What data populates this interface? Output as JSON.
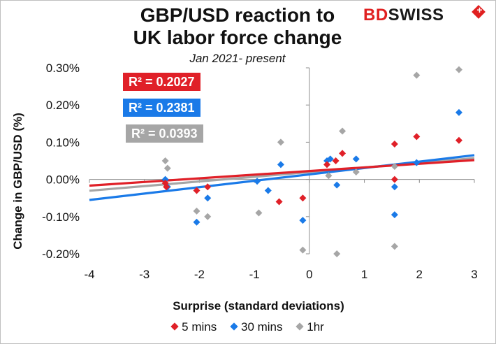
{
  "title_line1": "GBP/USD reaction to",
  "title_line2": "UK labor force change",
  "subtitle": "Jan 2021- present",
  "logo": {
    "part1": "BD",
    "part2": "SWISS"
  },
  "r2_labels": [
    "R² = 0.2027",
    "R² = 0.2381",
    "R² = 0.0393"
  ],
  "colors": {
    "s5": "#e02028",
    "s30": "#1a7ae8",
    "s1h": "#a6a6a6"
  },
  "chart_data": {
    "type": "scatter",
    "title": "GBP/USD reaction to UK labor force change",
    "subtitle": "Jan 2021- present",
    "xlabel": "Surprise (standard deviations)",
    "ylabel": "Change in GBP/USD  (%)",
    "xlim": [
      -4,
      3
    ],
    "ylim": [
      -0.2,
      0.3
    ],
    "xticks": [
      "-4",
      "-3",
      "-2",
      "-1",
      "0",
      "1",
      "2",
      "3"
    ],
    "yticks": [
      "0.30%",
      "0.20%",
      "0.10%",
      "0.00%",
      "-0.10%",
      "-0.20%"
    ],
    "legend_position": "bottom",
    "series": [
      {
        "name": "5 mins",
        "points": [
          [
            -2.62,
            -0.01
          ],
          [
            -2.6,
            -0.02
          ],
          [
            -2.05,
            -0.03
          ],
          [
            -1.85,
            -0.02
          ],
          [
            -0.55,
            -0.06
          ],
          [
            -0.12,
            -0.05
          ],
          [
            0.32,
            0.04
          ],
          [
            0.48,
            0.05
          ],
          [
            0.6,
            0.07
          ],
          [
            1.55,
            0.095
          ],
          [
            1.55,
            0.0
          ],
          [
            1.95,
            0.115
          ],
          [
            2.72,
            0.105
          ]
        ],
        "trend": {
          "slope": 0.0098,
          "intercept": 0.0225
        }
      },
      {
        "name": "30 mins",
        "points": [
          [
            -2.62,
            0.0
          ],
          [
            -2.58,
            -0.02
          ],
          [
            -2.05,
            -0.115
          ],
          [
            -1.85,
            -0.05
          ],
          [
            -0.95,
            -0.005
          ],
          [
            -0.75,
            -0.03
          ],
          [
            -0.52,
            0.04
          ],
          [
            -0.12,
            -0.11
          ],
          [
            0.32,
            0.05
          ],
          [
            0.38,
            0.055
          ],
          [
            0.5,
            -0.015
          ],
          [
            0.85,
            0.055
          ],
          [
            1.55,
            -0.02
          ],
          [
            1.55,
            -0.095
          ],
          [
            1.95,
            0.045
          ],
          [
            2.72,
            0.18
          ]
        ],
        "trend": {
          "slope": 0.0172,
          "intercept": 0.0135
        }
      },
      {
        "name": "1hr",
        "points": [
          [
            -2.62,
            0.05
          ],
          [
            -2.58,
            0.03
          ],
          [
            -2.05,
            -0.085
          ],
          [
            -1.85,
            -0.1
          ],
          [
            -0.92,
            -0.09
          ],
          [
            -0.52,
            0.1
          ],
          [
            -0.12,
            -0.19
          ],
          [
            0.35,
            0.01
          ],
          [
            0.5,
            -0.2
          ],
          [
            0.6,
            0.13
          ],
          [
            0.85,
            0.02
          ],
          [
            1.55,
            0.035
          ],
          [
            1.55,
            -0.18
          ],
          [
            1.95,
            0.28
          ],
          [
            2.72,
            0.295
          ]
        ],
        "trend": {
          "slope": 0.0125,
          "intercept": 0.0195
        }
      }
    ]
  }
}
